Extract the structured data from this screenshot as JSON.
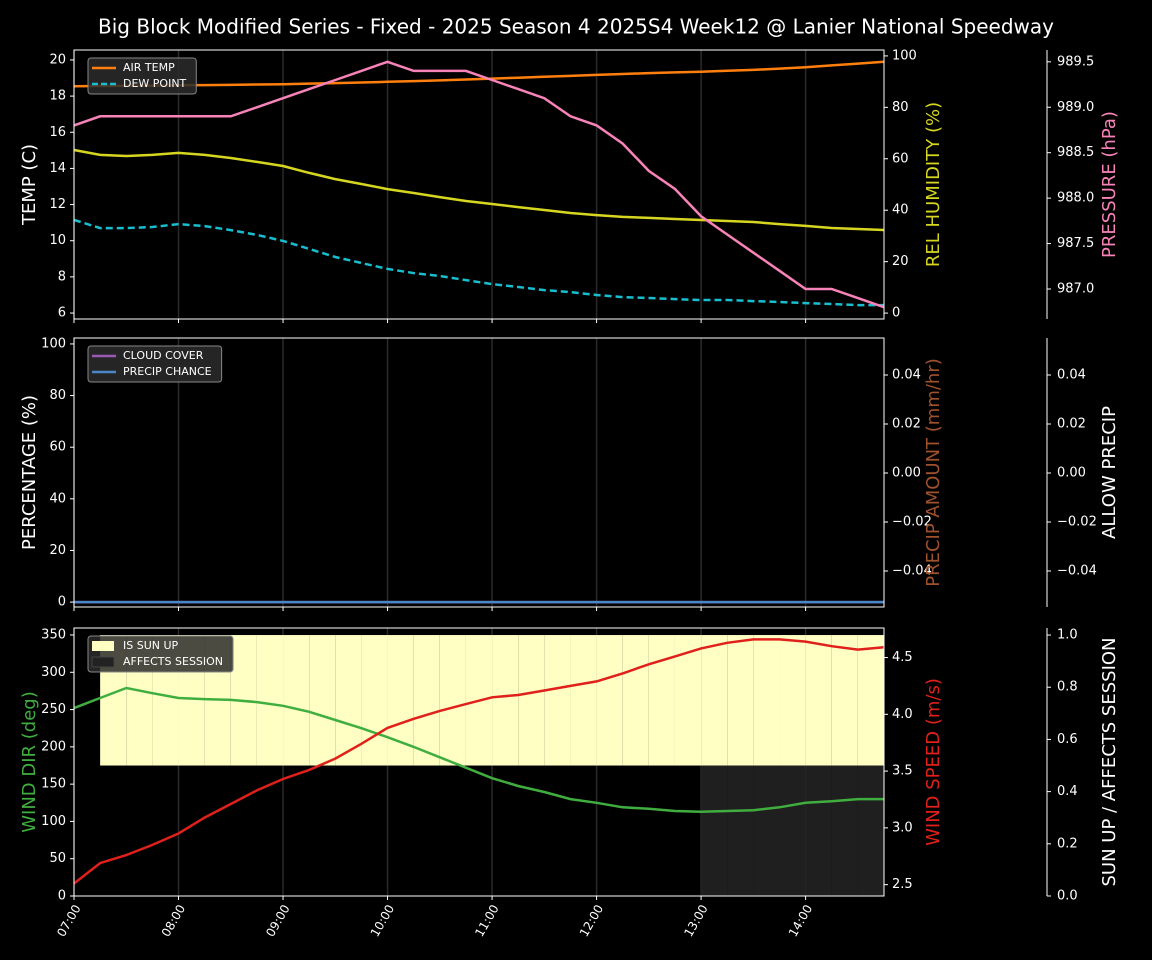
{
  "chart_data": {
    "type": "multi",
    "title": "Big Block Modified Series - Fixed - 2025 Season 4 2025S4 Week12 @ Lanier National Speedway",
    "categories": [
      "07:00",
      null,
      null,
      null,
      "08:00",
      null,
      null,
      null,
      "09:00",
      null,
      null,
      null,
      "10:00",
      null,
      null,
      null,
      "11:00",
      null,
      null,
      null,
      "12:00",
      null,
      null,
      null,
      "13:00",
      null,
      null,
      null,
      "14:00",
      null,
      null,
      null
    ],
    "panels": [
      {
        "type": "line",
        "legend": "upper left",
        "ylabel": "TEMP (C)",
        "ylim": [
          5.67,
          20.55
        ],
        "yticks": [
          6,
          8,
          10,
          12,
          14,
          16,
          18,
          20
        ],
        "y2label": "REL HUMIDITY (%)",
        "y2lim": [
          -2.3,
          102.3
        ],
        "y2ticks": [
          0,
          20,
          40,
          60,
          80,
          100
        ],
        "y3label": "PRESSURE (hPa)",
        "y3lim": [
          986.67,
          989.63
        ],
        "y3ticks": [
          {
            "value": 987.0,
            "label": "987.0"
          },
          987.5,
          {
            "value": 988.0,
            "label": "988.0"
          },
          988.5,
          {
            "value": 989.0,
            "label": "989.0"
          },
          989.5
        ],
        "series": [
          {
            "name": "AIR TEMP",
            "color": "#ff7f0e",
            "axis": "y",
            "values": [
              18.55,
              18.56,
              18.57,
              18.58,
              18.6,
              18.61,
              18.62,
              18.64,
              18.66,
              18.69,
              18.72,
              18.75,
              18.79,
              18.83,
              18.87,
              18.92,
              18.97,
              19.02,
              19.07,
              19.12,
              19.17,
              19.22,
              19.27,
              19.31,
              19.35,
              19.4,
              19.45,
              19.52,
              19.6,
              19.7,
              19.8,
              19.9
            ]
          },
          {
            "name": "DEW POINT",
            "color": "#17becf",
            "axis": "y",
            "dashed": true,
            "values": [
              11.15,
              10.7,
              10.7,
              10.76,
              10.92,
              10.81,
              10.59,
              10.32,
              9.99,
              9.55,
              9.1,
              8.77,
              8.44,
              8.21,
              8.05,
              7.82,
              7.6,
              7.44,
              7.27,
              7.16,
              7.0,
              6.88,
              6.83,
              6.77,
              6.72,
              6.72,
              6.66,
              6.61,
              6.55,
              6.5,
              6.44,
              6.44
            ]
          },
          {
            "color": "#d6d620",
            "axis": "y2",
            "values": [
              63.4,
              61.5,
              61.1,
              61.5,
              62.3,
              61.5,
              60.3,
              58.8,
              57.2,
              54.5,
              52.1,
              50.2,
              48.2,
              46.7,
              45.1,
              43.6,
              42.4,
              41.2,
              40.1,
              38.9,
              38.1,
              37.4,
              37.0,
              36.6,
              36.2,
              35.8,
              35.4,
              34.6,
              33.9,
              33.1,
              32.7,
              32.3
            ]
          },
          {
            "color": "#f783b8",
            "axis": "y3",
            "values": [
              988.8,
              988.9,
              988.9,
              988.9,
              988.9,
              988.9,
              988.9,
              989.0,
              989.1,
              989.2,
              989.3,
              989.4,
              989.5,
              989.4,
              989.4,
              989.4,
              989.3,
              989.2,
              989.1,
              988.9,
              988.8,
              988.6,
              988.3,
              988.1,
              987.8,
              987.6,
              987.4,
              987.2,
              987.0,
              987.0,
              986.9,
              986.8
            ]
          }
        ]
      },
      {
        "type": "line",
        "legend": "upper left",
        "ylabel": "PERCENTAGE (%)",
        "ylim": [
          -1.9,
          102.3
        ],
        "yticks": [
          0,
          20,
          40,
          60,
          80,
          100
        ],
        "y2label": "PRECIP AMOUNT (mm/hr)",
        "y2lim": [
          -0.0547,
          0.0551
        ],
        "y2ticks": [
          {
            "value": -0.04,
            "label": "−0.04"
          },
          {
            "value": -0.02,
            "label": "−0.02"
          },
          {
            "value": 0,
            "label": "0.00"
          },
          0.02,
          0.04
        ],
        "y3label": "ALLOW PRECIP",
        "y3lim": [
          -0.0547,
          0.0551
        ],
        "y3ticks": [
          {
            "value": -0.04,
            "label": "−0.04"
          },
          {
            "value": -0.02,
            "label": "−0.02"
          },
          {
            "value": 0,
            "label": "0.00"
          },
          0.02,
          0.04
        ],
        "series": [
          {
            "name": "CLOUD COVER",
            "color": "#9b59b6",
            "axis": "y",
            "values": [
              0,
              0,
              0,
              0,
              0,
              0,
              0,
              0,
              0,
              0,
              0,
              0,
              0,
              0,
              0,
              0,
              0,
              0,
              0,
              0,
              0,
              0,
              0,
              0,
              0,
              0,
              0,
              0,
              0,
              0,
              0,
              0
            ]
          },
          {
            "name": "PRECIP CHANCE",
            "color": "#4a86c8",
            "axis": "y",
            "values": [
              0,
              0,
              0,
              0,
              0,
              0,
              0,
              0,
              0,
              0,
              0,
              0,
              0,
              0,
              0,
              0,
              0,
              0,
              0,
              0,
              0,
              0,
              0,
              0,
              0,
              0,
              0,
              0,
              0,
              0,
              0,
              0
            ]
          }
        ]
      },
      {
        "type": "line",
        "legend": "upper left",
        "ylabel": "WIND DIR (deg)",
        "ylim": [
          0,
          359.4
        ],
        "yticks": [
          0,
          50,
          100,
          150,
          200,
          250,
          300,
          350
        ],
        "y2label": "WIND SPEED (m/s)",
        "y2lim": [
          2.4,
          4.76
        ],
        "y2ticks": [
          2.5,
          {
            "value": 3.0,
            "label": "3.0"
          },
          3.5,
          {
            "value": 4.0,
            "label": "4.0"
          },
          4.5
        ],
        "y3label": "SUN UP / AFFECTS SESSION",
        "y3lim": [
          0,
          1.027
        ],
        "y3ticks": [
          {
            "value": 0,
            "label": "0.0"
          },
          0.2,
          0.4,
          0.6,
          0.8,
          {
            "value": 1,
            "label": "1.0"
          }
        ],
        "series": [
          {
            "name": "IS SUN UP",
            "color": "#ffffc4",
            "axis": "y3",
            "band": "upper",
            "values": [
              0,
              1,
              1,
              1,
              1,
              1,
              1,
              1,
              1,
              1,
              1,
              1,
              1,
              1,
              1,
              1,
              1,
              1,
              1,
              1,
              1,
              1,
              1,
              1,
              1,
              1,
              1,
              1,
              1,
              1,
              1,
              1
            ]
          },
          {
            "name": "AFFECTS SESSION",
            "color": "#222222",
            "axis": "y3",
            "band": "lower",
            "values": [
              0,
              0,
              0,
              0,
              0,
              0,
              0,
              0,
              0,
              0,
              0,
              0,
              0,
              0,
              0,
              0,
              0,
              0,
              0,
              0,
              0,
              0,
              0,
              0,
              1,
              1,
              1,
              1,
              1,
              1,
              1,
              1
            ]
          },
          {
            "color": "#3fae3f",
            "axis": "y",
            "values": [
              252,
              265.5,
              279,
              272,
              265.5,
              264,
              263,
              260,
              255,
              247,
              236,
              225,
              213,
              200,
              186,
              172,
              158,
              147.5,
              139.5,
              130,
              125,
              119,
              117,
              114,
              113,
              114,
              115,
              119,
              125,
              127,
              130,
              130
            ]
          },
          {
            "color": "#e0201b",
            "axis": "y2",
            "values": [
              2.51,
              2.69,
              2.76,
              2.85,
              2.95,
              3.09,
              3.21,
              3.33,
              3.43,
              3.51,
              3.61,
              3.74,
              3.88,
              3.96,
              4.03,
              4.09,
              4.15,
              4.17,
              4.21,
              4.25,
              4.29,
              4.36,
              4.44,
              4.51,
              4.58,
              4.63,
              4.66,
              4.66,
              4.64,
              4.6,
              4.57,
              4.59
            ]
          }
        ]
      }
    ]
  }
}
